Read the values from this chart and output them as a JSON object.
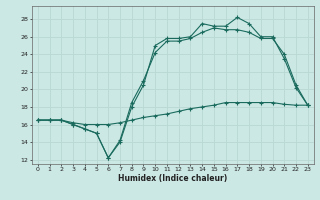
{
  "title": "",
  "xlabel": "Humidex (Indice chaleur)",
  "bg_color": "#cce8e4",
  "line_color": "#1a6b5e",
  "grid_color": "#b8d8d4",
  "xlim": [
    -0.5,
    23.5
  ],
  "ylim": [
    11.5,
    29.5
  ],
  "xticks": [
    0,
    1,
    2,
    3,
    4,
    5,
    6,
    7,
    8,
    9,
    10,
    11,
    12,
    13,
    14,
    15,
    16,
    17,
    18,
    19,
    20,
    21,
    22,
    23
  ],
  "yticks": [
    12,
    14,
    16,
    18,
    20,
    22,
    24,
    26,
    28
  ],
  "line1_x": [
    0,
    1,
    2,
    3,
    4,
    5,
    6,
    7,
    8,
    9,
    10,
    11,
    12,
    13,
    14,
    15,
    16,
    17,
    18,
    19,
    20,
    21,
    22,
    23
  ],
  "line1_y": [
    16.5,
    16.5,
    16.5,
    16.0,
    15.5,
    15.0,
    12.2,
    14.0,
    18.0,
    20.5,
    25.0,
    25.8,
    25.8,
    26.0,
    27.5,
    27.2,
    27.2,
    28.2,
    27.5,
    26.0,
    26.0,
    23.5,
    20.2,
    18.2
  ],
  "line2_x": [
    0,
    1,
    2,
    3,
    4,
    5,
    6,
    7,
    8,
    9,
    10,
    11,
    12,
    13,
    14,
    15,
    16,
    17,
    18,
    19,
    20,
    21,
    22,
    23
  ],
  "line2_y": [
    16.5,
    16.5,
    16.5,
    16.0,
    15.5,
    15.0,
    12.2,
    14.2,
    18.5,
    21.0,
    24.2,
    25.5,
    25.5,
    25.8,
    26.5,
    27.0,
    26.8,
    26.8,
    26.5,
    25.8,
    25.8,
    24.0,
    20.5,
    18.2
  ],
  "line3_x": [
    0,
    1,
    2,
    3,
    4,
    5,
    6,
    7,
    8,
    9,
    10,
    11,
    12,
    13,
    14,
    15,
    16,
    17,
    18,
    19,
    20,
    21,
    22,
    23
  ],
  "line3_y": [
    16.5,
    16.5,
    16.5,
    16.2,
    16.0,
    16.0,
    16.0,
    16.2,
    16.5,
    16.8,
    17.0,
    17.2,
    17.5,
    17.8,
    18.0,
    18.2,
    18.5,
    18.5,
    18.5,
    18.5,
    18.5,
    18.3,
    18.2,
    18.2
  ]
}
